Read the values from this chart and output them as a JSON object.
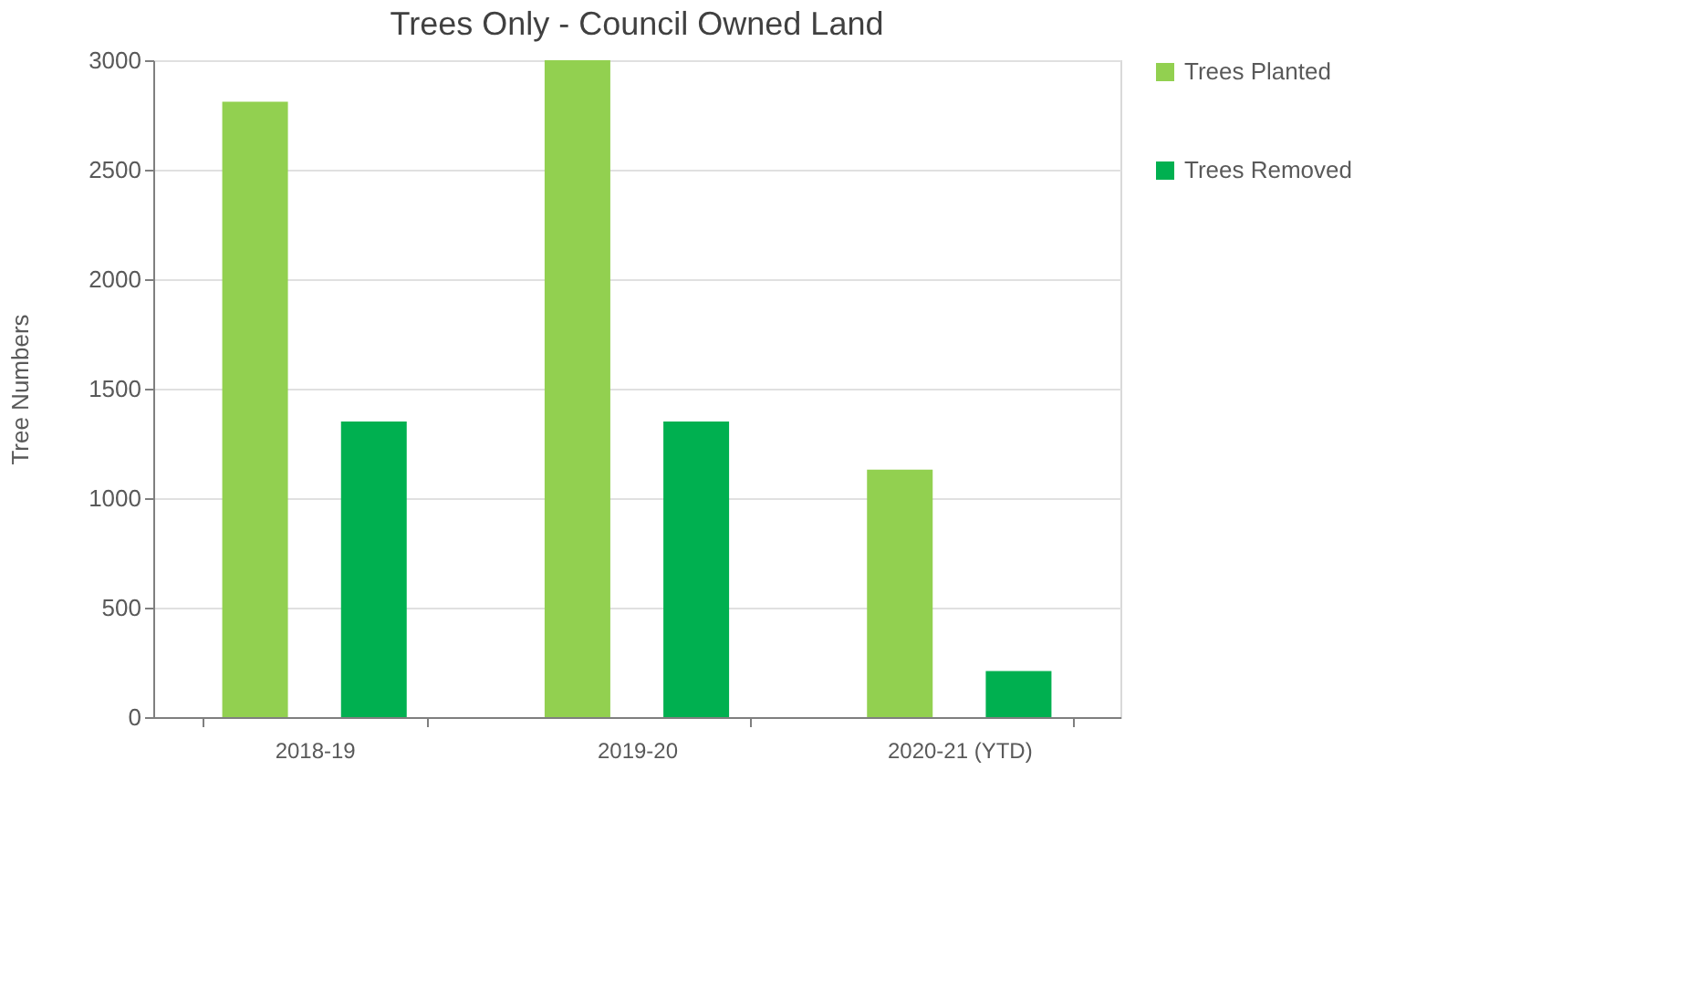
{
  "chart_data": {
    "type": "bar",
    "title": "Trees Only  -  Council Owned Land",
    "ylabel": "Tree Numbers",
    "categories": [
      "2018-19",
      "2019-20",
      "2020-21 (YTD)"
    ],
    "series": [
      {
        "name": "Trees Planted",
        "color": "#92d050",
        "values": [
          2810,
          3000,
          1130
        ]
      },
      {
        "name": "Trees Removed",
        "color": "#00b050",
        "values": [
          1350,
          1350,
          210
        ]
      }
    ],
    "ylim": [
      0,
      3000
    ],
    "yticks": [
      0,
      500,
      1000,
      1500,
      2000,
      2500,
      3000
    ],
    "grid": "y",
    "legend": "right"
  }
}
